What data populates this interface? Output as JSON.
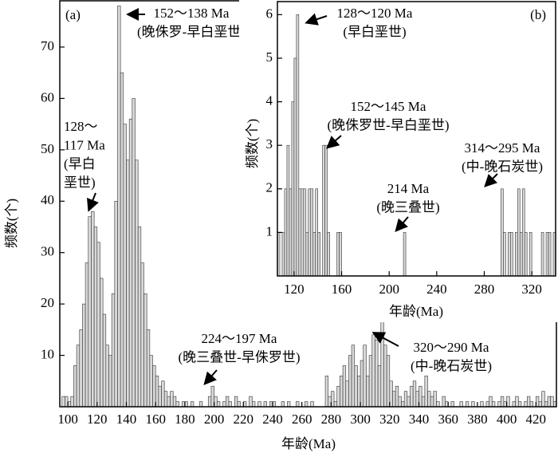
{
  "chart_data": [
    {
      "type": "histogram",
      "panel_label": "(a)",
      "xlabel": "年龄(Ma)",
      "ylabel": "频数(个)",
      "color": "#d9d9d9",
      "bins": [
        96,
        98,
        100,
        102,
        104,
        106,
        108,
        110,
        112,
        114,
        116,
        118,
        120,
        122,
        124,
        126,
        128,
        130,
        132,
        134,
        136,
        138,
        140,
        142,
        144,
        146,
        148,
        150,
        152,
        154,
        156,
        158,
        160,
        162,
        164,
        166,
        168,
        170,
        172,
        174,
        176,
        178,
        180,
        182,
        184,
        186,
        188,
        190,
        192,
        194,
        196,
        198,
        200,
        202,
        204,
        206,
        208,
        210,
        212,
        214,
        216,
        218,
        220,
        222,
        224,
        226,
        228,
        230,
        232,
        234,
        236,
        238,
        240,
        242,
        244,
        246,
        248,
        250,
        252,
        254,
        256,
        258,
        260,
        262,
        264,
        266,
        268,
        270,
        272,
        274,
        276,
        278,
        280,
        282,
        284,
        286,
        288,
        290,
        292,
        294,
        296,
        298,
        300,
        302,
        304,
        306,
        308,
        310,
        312,
        314,
        316,
        318,
        320,
        322,
        324,
        326,
        328,
        330,
        332,
        334,
        336,
        338,
        340,
        342,
        344,
        346,
        348,
        350,
        352,
        354,
        356,
        358,
        360,
        362,
        364,
        366,
        368,
        370,
        372,
        374,
        376,
        378,
        380,
        382,
        384,
        386,
        388,
        390,
        392,
        394,
        396,
        398,
        400,
        402,
        404,
        406,
        408,
        410,
        412,
        414,
        416,
        418,
        420,
        422,
        424,
        426,
        428,
        430,
        432,
        434
      ],
      "values": [
        2,
        2,
        1,
        2,
        8,
        12,
        15,
        20,
        28,
        37,
        38,
        35,
        32,
        25,
        18,
        12,
        10,
        22,
        40,
        78,
        65,
        55,
        48,
        56,
        60,
        48,
        35,
        28,
        22,
        15,
        10,
        8,
        6,
        4,
        5,
        3,
        2,
        3,
        2,
        1,
        0,
        1,
        1,
        0,
        1,
        0,
        0,
        1,
        0,
        0,
        2,
        4,
        2,
        1,
        0,
        1,
        2,
        1,
        0,
        2,
        1,
        0,
        1,
        0,
        2,
        1,
        0,
        1,
        0,
        1,
        0,
        1,
        1,
        0,
        0,
        1,
        0,
        1,
        0,
        0,
        1,
        0,
        0,
        1,
        0,
        1,
        0,
        0,
        0,
        0,
        6,
        2,
        3,
        1,
        4,
        6,
        8,
        5,
        10,
        12,
        8,
        6,
        9,
        12,
        6,
        10,
        14,
        13,
        8,
        17,
        12,
        10,
        5,
        3,
        4,
        2,
        1,
        3,
        2,
        4,
        5,
        3,
        4,
        2,
        6,
        3,
        2,
        3,
        1,
        0,
        2,
        1,
        0,
        1,
        0,
        0,
        1,
        0,
        1,
        0,
        1,
        0,
        0,
        1,
        0,
        1,
        2,
        1,
        0,
        1,
        2,
        1,
        2,
        0,
        1,
        2,
        1,
        0,
        1,
        2,
        1,
        0,
        2,
        1,
        3,
        1,
        2,
        2,
        1
      ],
      "xlim": [
        94.5,
        434
      ],
      "ylim": [
        0,
        79
      ],
      "xticks": [
        100,
        120,
        140,
        160,
        180,
        200,
        220,
        240,
        260,
        280,
        300,
        320,
        340,
        360,
        380,
        400,
        420
      ],
      "yticks": [
        10,
        20,
        30,
        40,
        50,
        60,
        70
      ],
      "annotations": [
        {
          "lines": [
            "152～138 Ma",
            "(晚侏罗-早白垩世)"
          ]
        },
        {
          "lines": [
            "128～",
            "117 Ma",
            "(早白",
            "垩世)"
          ]
        },
        {
          "lines": [
            "224～197 Ma",
            "(晚三叠世-早侏罗世)"
          ]
        },
        {
          "lines": [
            "320～290 Ma",
            "(中-晚石炭世)"
          ]
        }
      ]
    },
    {
      "type": "histogram",
      "panel_label": "(b)",
      "xlabel": "年龄(Ma)",
      "ylabel": "频数(个)",
      "color": "#d9d9d9",
      "bins": [
        106,
        108,
        110,
        112,
        114,
        116,
        118,
        120,
        122,
        124,
        126,
        128,
        130,
        132,
        134,
        136,
        138,
        140,
        142,
        144,
        146,
        148,
        150,
        152,
        154,
        156,
        158,
        160,
        162,
        164,
        166,
        168,
        170,
        172,
        174,
        176,
        178,
        180,
        182,
        184,
        186,
        188,
        190,
        192,
        194,
        196,
        198,
        200,
        202,
        204,
        206,
        208,
        210,
        212,
        214,
        216,
        218,
        220,
        222,
        224,
        226,
        228,
        230,
        232,
        234,
        236,
        238,
        240,
        242,
        244,
        246,
        248,
        250,
        252,
        254,
        256,
        258,
        260,
        262,
        264,
        266,
        268,
        270,
        272,
        274,
        276,
        278,
        280,
        282,
        284,
        286,
        288,
        290,
        292,
        294,
        296,
        298,
        300,
        302,
        304,
        306,
        308,
        310,
        312,
        314,
        316,
        318,
        320,
        322,
        324,
        326,
        328,
        330,
        332,
        334,
        336,
        338,
        340
      ],
      "values": [
        1,
        0,
        1,
        2,
        3,
        2,
        4,
        5,
        6,
        2,
        2,
        2,
        1,
        2,
        2,
        1,
        2,
        1,
        0,
        3,
        3,
        1,
        0,
        0,
        0,
        1,
        1,
        0,
        0,
        0,
        0,
        0,
        0,
        0,
        0,
        0,
        0,
        0,
        0,
        0,
        0,
        0,
        0,
        0,
        0,
        0,
        0,
        0,
        0,
        0,
        0,
        0,
        0,
        1,
        0,
        0,
        0,
        0,
        0,
        0,
        0,
        0,
        0,
        0,
        0,
        0,
        0,
        0,
        0,
        0,
        0,
        0,
        0,
        0,
        0,
        0,
        0,
        0,
        0,
        0,
        0,
        0,
        0,
        0,
        0,
        0,
        0,
        0,
        0,
        0,
        0,
        0,
        0,
        0,
        2,
        1,
        0,
        1,
        1,
        0,
        1,
        2,
        1,
        2,
        1,
        0,
        1,
        0,
        0,
        0,
        0,
        1,
        0,
        1,
        1,
        0,
        1
      ],
      "xlim": [
        106,
        340
      ],
      "ylim": [
        0,
        6.3
      ],
      "xticks": [
        120,
        160,
        200,
        240,
        280,
        320
      ],
      "yticks": [
        1,
        2,
        3,
        4,
        5,
        6
      ],
      "annotations": [
        {
          "lines": [
            "128～120 Ma",
            "(早白垩世)"
          ]
        },
        {
          "lines": [
            "152～145 Ma",
            "(晚侏罗世-早白垩世)"
          ]
        },
        {
          "lines": [
            "214 Ma",
            "(晚三叠世)"
          ]
        },
        {
          "lines": [
            "314～295 Ma",
            "(中-晚石炭世)"
          ]
        }
      ]
    }
  ]
}
